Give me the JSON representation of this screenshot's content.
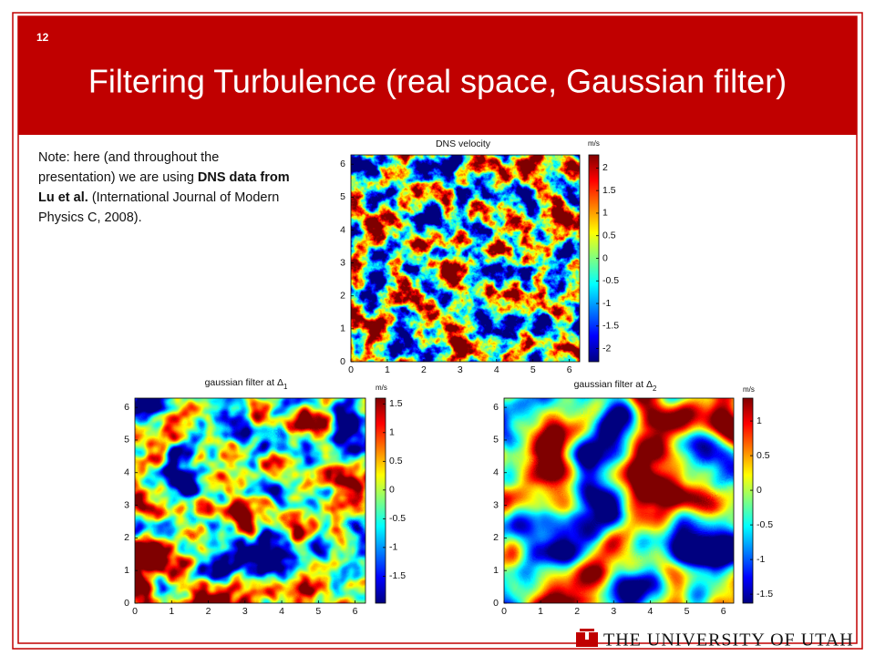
{
  "slide_number": "12",
  "title": "Filtering Turbulence (real space, Gaussian filter)",
  "note": [
    {
      "text": "Note: here (and throughout the presentation) we are using ",
      "bold": false
    },
    {
      "text": "DNS data from Lu et al.",
      "bold": true
    },
    {
      "text": " (International Journal of Modern Physics C, 2008).",
      "bold": false
    }
  ],
  "figures": [
    {
      "title": "DNS velocity",
      "unit": "m/s",
      "xlim": [
        0,
        6.283
      ],
      "ylim": [
        0,
        6.283
      ],
      "xticks": [
        0,
        1,
        2,
        3,
        4,
        5,
        6
      ],
      "yticks": [
        0,
        1,
        2,
        3,
        4,
        5,
        6
      ],
      "clim": [
        -2.29,
        2.29
      ],
      "cticks": [
        -2,
        -1.5,
        -1,
        -0.5,
        0,
        0.5,
        1,
        1.5,
        2
      ]
    },
    {
      "title": "gaussian filter at Δ",
      "title_subscript": "1",
      "unit": "m/s",
      "xlim": [
        0,
        6.283
      ],
      "ylim": [
        0,
        6.283
      ],
      "xticks": [
        0,
        1,
        2,
        3,
        4,
        5,
        6
      ],
      "yticks": [
        0,
        1,
        2,
        3,
        4,
        5,
        6
      ],
      "clim": [
        -1.97,
        1.6
      ],
      "cticks": [
        -1.5,
        -1,
        -0.5,
        0,
        0.5,
        1,
        1.5
      ]
    },
    {
      "title": "gaussian filter at Δ",
      "title_subscript": "2",
      "unit": "m/s",
      "xlim": [
        0,
        6.283
      ],
      "ylim": [
        0,
        6.283
      ],
      "xticks": [
        0,
        1,
        2,
        3,
        4,
        5,
        6
      ],
      "yticks": [
        0,
        1,
        2,
        3,
        4,
        5,
        6
      ],
      "clim": [
        -1.63,
        1.33
      ],
      "cticks": [
        -1.5,
        -1,
        -0.5,
        0,
        0.5,
        1
      ]
    }
  ],
  "footer": "THE UNIVERSITY OF UTAH"
}
